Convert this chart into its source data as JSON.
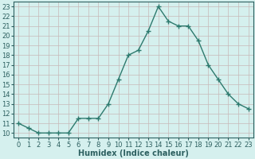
{
  "x": [
    0,
    1,
    2,
    3,
    4,
    5,
    6,
    7,
    8,
    9,
    10,
    11,
    12,
    13,
    14,
    15,
    16,
    17,
    18,
    19,
    20,
    21,
    22,
    23
  ],
  "y": [
    11.0,
    10.5,
    10.0,
    10.0,
    10.0,
    10.0,
    11.5,
    11.5,
    11.5,
    13.0,
    15.5,
    18.0,
    18.5,
    20.5,
    23.0,
    21.5,
    21.0,
    21.0,
    19.5,
    17.0,
    15.5,
    14.0,
    13.0,
    12.5
  ],
  "line_color": "#2d7a6e",
  "marker": "+",
  "marker_size": 4.0,
  "line_width": 1.0,
  "xlabel": "Humidex (Indice chaleur)",
  "xlabel_fontsize": 7.0,
  "tick_fontsize": 6.0,
  "ylim": [
    9.5,
    23.5
  ],
  "xlim": [
    -0.5,
    23.5
  ],
  "yticks": [
    10,
    11,
    12,
    13,
    14,
    15,
    16,
    17,
    18,
    19,
    20,
    21,
    22,
    23
  ],
  "xticks": [
    0,
    1,
    2,
    3,
    4,
    5,
    6,
    7,
    8,
    9,
    10,
    11,
    12,
    13,
    14,
    15,
    16,
    17,
    18,
    19,
    20,
    21,
    22,
    23
  ],
  "bg_color": "#d5f0ee",
  "grid_color": "#c8b8b8",
  "axis_color": "#2d6060",
  "label_color": "#2d6060"
}
